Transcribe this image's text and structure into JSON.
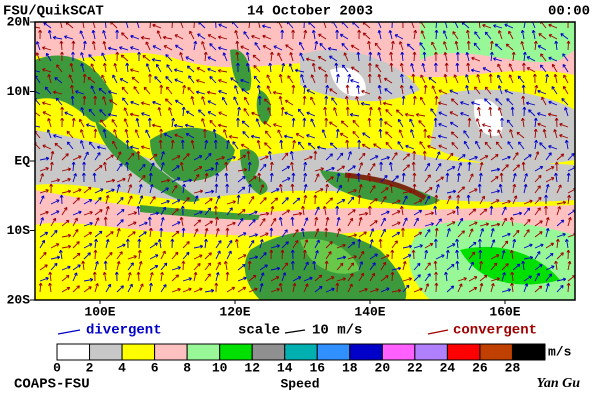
{
  "header": {
    "left": "FSU/QuikSCAT",
    "date": "14 October 2003",
    "time": "00:00"
  },
  "map": {
    "lat_labels": [
      "20N",
      "10N",
      "EQ",
      "10S",
      "20S"
    ],
    "lon_labels": [
      "100E",
      "120E",
      "140E",
      "160E"
    ]
  },
  "legend": {
    "divergent": "divergent",
    "scale": "scale",
    "scale_value": "10 m/s",
    "convergent": "convergent"
  },
  "colorbar": {
    "labels": [
      "0",
      "2",
      "4",
      "6",
      "8",
      "10",
      "12",
      "14",
      "16",
      "18",
      "20",
      "22",
      "24",
      "26",
      "28"
    ],
    "unit": "m/s",
    "title": "Speed",
    "colors": [
      "#ffffff",
      "#c8c8c8",
      "#ffff00",
      "#ffc0c0",
      "#98f898",
      "#00e000",
      "#909090",
      "#00b0b0",
      "#3090ff",
      "#0000c8",
      "#ff60ff",
      "#b080ff",
      "#ff0000",
      "#c04000",
      "#000000"
    ]
  },
  "footer": {
    "left": "COAPS-FSU",
    "right": "Yan Gu"
  }
}
